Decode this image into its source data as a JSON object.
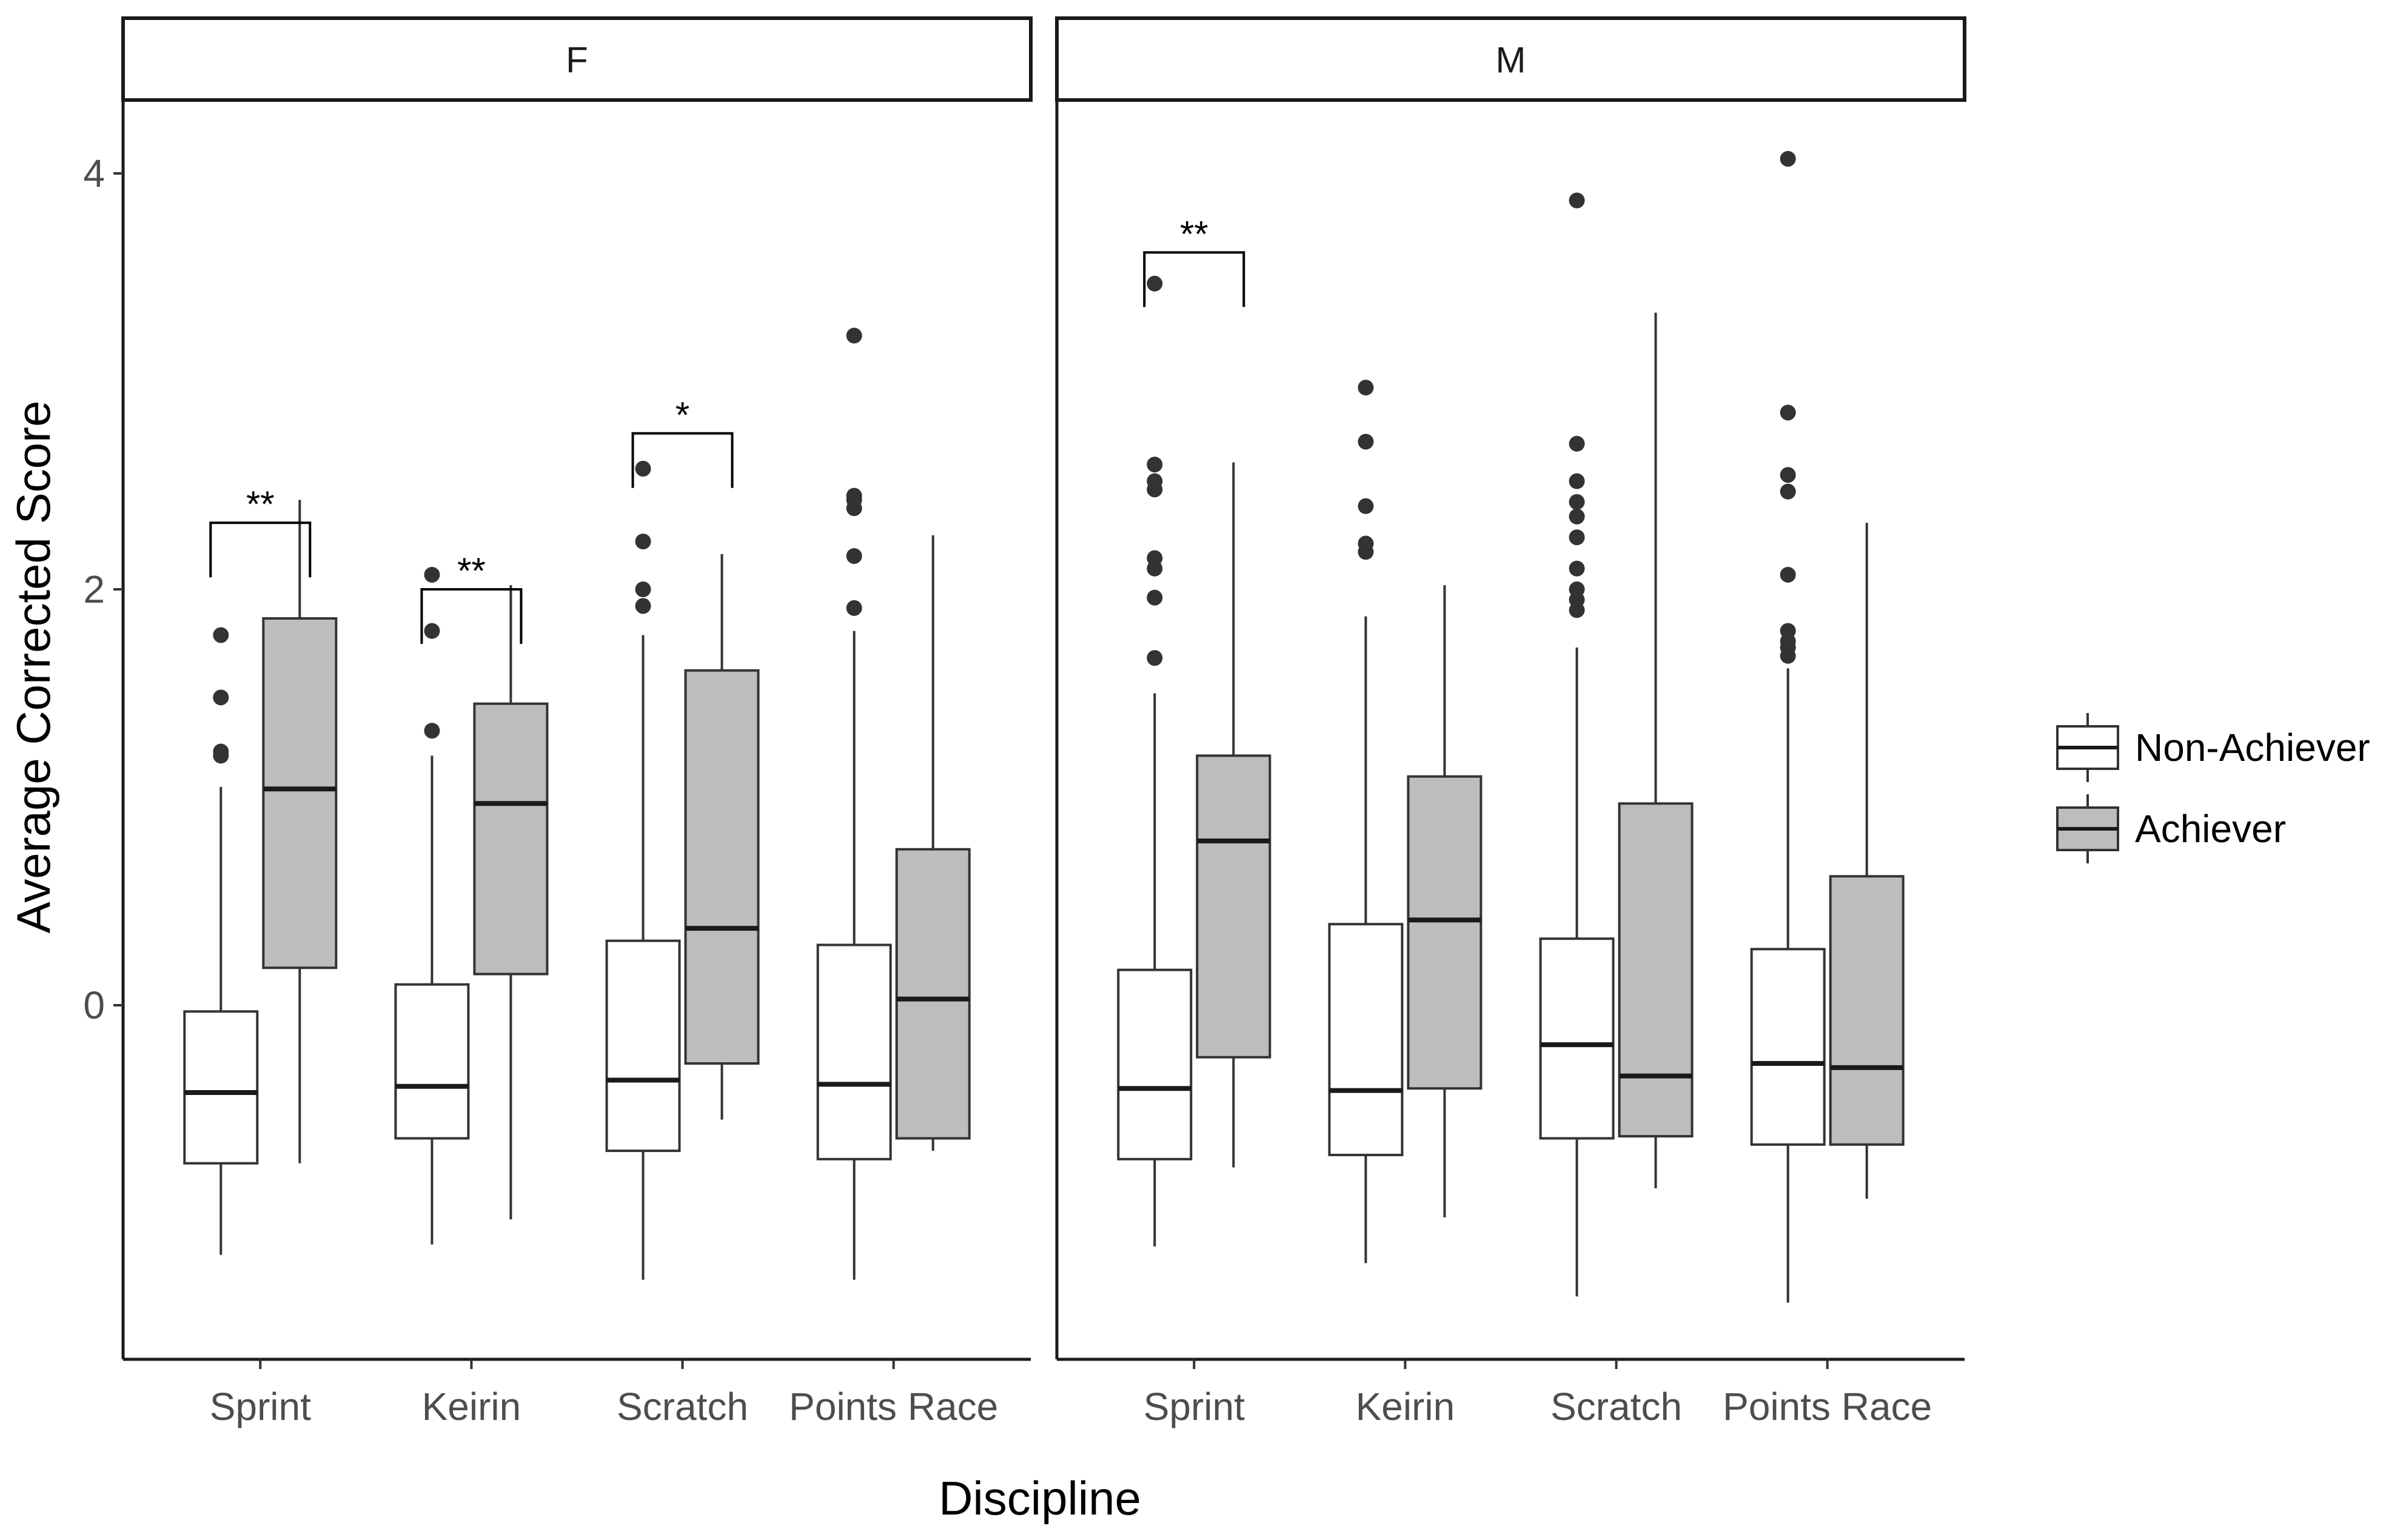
{
  "chart_data": {
    "type": "boxplot",
    "xlabel": "Discipline",
    "ylabel": "Average Corrected Score",
    "ylim": [
      -1.7,
      4.4
    ],
    "yticks": [
      0,
      2,
      4
    ],
    "yticklabels": [
      "0",
      "2",
      "4"
    ],
    "categories": [
      "Sprint",
      "Keirin",
      "Scratch",
      "Points Race"
    ],
    "legend": {
      "position": "right",
      "entries": [
        {
          "name": "Non-Achiever",
          "fill": "#ffffff"
        },
        {
          "name": "Achiever",
          "fill": "#bdbdbd"
        }
      ]
    },
    "facets": [
      {
        "label": "F",
        "groups": [
          {
            "category": "Sprint",
            "series": [
              {
                "name": "Non-Achiever",
                "min": -1.2,
                "q1": -0.76,
                "median": -0.42,
                "q3": -0.03,
                "max": 1.05,
                "outliers": [
                  1.2,
                  1.22,
                  1.48,
                  1.78
                ]
              },
              {
                "name": "Achiever",
                "min": -0.76,
                "q1": 0.18,
                "median": 1.04,
                "q3": 1.86,
                "max": 2.43,
                "outliers": []
              }
            ],
            "significance": "**",
            "bracket_y": 2.32
          },
          {
            "category": "Keirin",
            "series": [
              {
                "name": "Non-Achiever",
                "min": -1.15,
                "q1": -0.64,
                "median": -0.39,
                "q3": 0.1,
                "max": 1.2,
                "outliers": [
                  1.32,
                  1.8,
                  2.07
                ]
              },
              {
                "name": "Achiever",
                "min": -1.03,
                "q1": 0.15,
                "median": 0.97,
                "q3": 1.45,
                "max": 2.02,
                "outliers": []
              }
            ],
            "significance": "**",
            "bracket_y": 2.0
          },
          {
            "category": "Scratch",
            "series": [
              {
                "name": "Non-Achiever",
                "min": -1.32,
                "q1": -0.7,
                "median": -0.36,
                "q3": 0.31,
                "max": 1.78,
                "outliers": [
                  1.92,
                  2.0,
                  2.23,
                  2.58
                ]
              },
              {
                "name": "Achiever",
                "min": -0.55,
                "q1": -0.28,
                "median": 0.37,
                "q3": 1.61,
                "max": 2.17,
                "outliers": []
              }
            ],
            "significance": "*",
            "bracket_y": 2.75
          },
          {
            "category": "Points Race",
            "series": [
              {
                "name": "Non-Achiever",
                "min": -1.32,
                "q1": -0.74,
                "median": -0.38,
                "q3": 0.29,
                "max": 1.8,
                "outliers": [
                  1.91,
                  2.16,
                  2.39,
                  2.43,
                  2.45,
                  3.22
                ]
              },
              {
                "name": "Achiever",
                "min": -0.7,
                "q1": -0.64,
                "median": 0.03,
                "q3": 0.75,
                "max": 2.26,
                "outliers": []
              }
            ]
          }
        ]
      },
      {
        "label": "M",
        "groups": [
          {
            "category": "Sprint",
            "series": [
              {
                "name": "Non-Achiever",
                "min": -1.16,
                "q1": -0.74,
                "median": -0.4,
                "q3": 0.17,
                "max": 1.5,
                "outliers": [
                  1.67,
                  1.96,
                  2.1,
                  2.15,
                  2.48,
                  2.52,
                  2.6,
                  3.47
                ]
              },
              {
                "name": "Achiever",
                "min": -0.78,
                "q1": -0.25,
                "median": 0.79,
                "q3": 1.2,
                "max": 2.61,
                "outliers": []
              }
            ],
            "significance": "**",
            "bracket_y": 3.62
          },
          {
            "category": "Keirin",
            "series": [
              {
                "name": "Non-Achiever",
                "min": -1.24,
                "q1": -0.72,
                "median": -0.41,
                "q3": 0.39,
                "max": 1.87,
                "outliers": [
                  2.18,
                  2.22,
                  2.4,
                  2.71,
                  2.97
                ]
              },
              {
                "name": "Achiever",
                "min": -1.02,
                "q1": -0.4,
                "median": 0.41,
                "q3": 1.1,
                "max": 2.02,
                "outliers": []
              }
            ]
          },
          {
            "category": "Scratch",
            "series": [
              {
                "name": "Non-Achiever",
                "min": -1.4,
                "q1": -0.64,
                "median": -0.19,
                "q3": 0.32,
                "max": 1.72,
                "outliers": [
                  1.9,
                  1.95,
                  2.0,
                  2.1,
                  2.25,
                  2.35,
                  2.42,
                  2.52,
                  2.7,
                  3.87
                ]
              },
              {
                "name": "Achiever",
                "min": -0.88,
                "q1": -0.63,
                "median": -0.34,
                "q3": 0.97,
                "max": 3.33,
                "outliers": []
              }
            ]
          },
          {
            "category": "Points Race",
            "series": [
              {
                "name": "Non-Achiever",
                "min": -1.43,
                "q1": -0.67,
                "median": -0.28,
                "q3": 0.27,
                "max": 1.62,
                "outliers": [
                  1.68,
                  1.72,
                  1.75,
                  1.8,
                  2.07,
                  2.47,
                  2.55,
                  2.85,
                  4.07
                ]
              },
              {
                "name": "Achiever",
                "min": -0.93,
                "q1": -0.67,
                "median": -0.3,
                "q3": 0.62,
                "max": 2.32,
                "outliers": []
              }
            ]
          }
        ]
      }
    ]
  }
}
